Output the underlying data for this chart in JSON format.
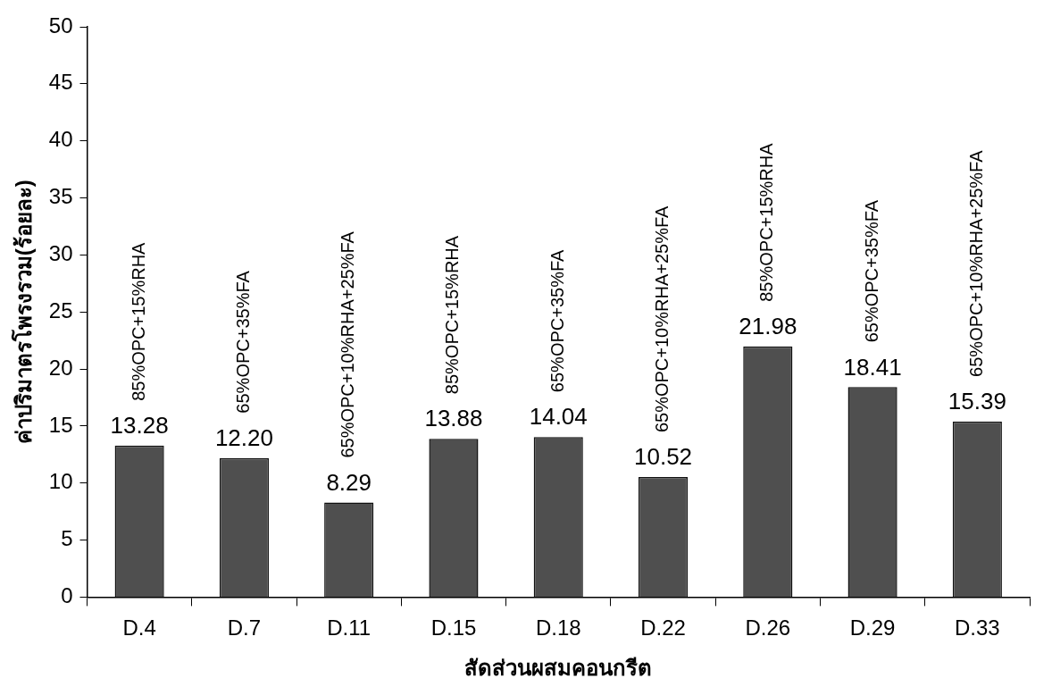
{
  "chart_data": {
    "type": "bar",
    "xlabel": "สัดส่วนผสมคอนกรีต",
    "ylabel": "ค่าปริมาตรโพรงรวม(ร้อยละ)",
    "categories": [
      "D.4",
      "D.7",
      "D.11",
      "D.15",
      "D.18",
      "D.22",
      "D.26",
      "D.29",
      "D.33"
    ],
    "values": [
      13.28,
      12.2,
      8.29,
      13.88,
      14.04,
      10.52,
      21.98,
      18.41,
      15.39
    ],
    "value_labels": [
      "13.28",
      "12.20",
      "8.29",
      "13.88",
      "14.04",
      "10.52",
      "21.98",
      "18.41",
      "15.39"
    ],
    "color": "#4f4f4f",
    "ylim": [
      0,
      50
    ],
    "yticks": [
      0,
      5,
      10,
      15,
      20,
      25,
      30,
      35,
      40,
      45,
      50
    ],
    "grid": false,
    "legend": false,
    "annotations": [
      "85%OPC+15%RHA",
      "65%OPC+35%FA",
      "65%OPC+10%RHA+25%FA",
      "85%OPC+15%RHA",
      "65%OPC+35%FA",
      "65%OPC+10%RHA+25%FA",
      "85%OPC+15%RHA",
      "65%OPC+35%FA",
      "65%OPC+10%RHA+25%FA"
    ]
  }
}
